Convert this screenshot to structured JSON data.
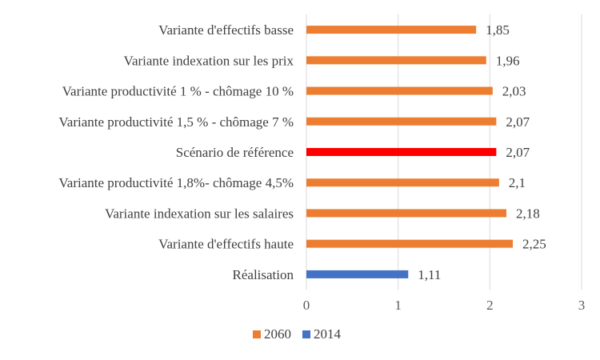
{
  "chart_data": {
    "type": "bar",
    "orientation": "horizontal",
    "categories": [
      "Variante d'effectifs basse",
      "Variante indexation sur les prix",
      "Variante productivité 1 % - chômage 10 %",
      "Variante productivité 1,5 % - chômage 7 %",
      "Scénario de référence",
      "Variante productivité 1,8%- chômage 4,5%",
      "Variante indexation sur les salaires",
      "Variante d'effectifs haute",
      "Réalisation"
    ],
    "values": [
      1.85,
      1.96,
      2.03,
      2.07,
      2.07,
      2.1,
      2.18,
      2.25,
      1.11
    ],
    "value_labels": [
      "1,85",
      "1,96",
      "2,03",
      "2,07",
      "2,07",
      "2,1",
      "2,18",
      "2,25",
      "1,11"
    ],
    "bar_series": [
      "2060",
      "2060",
      "2060",
      "2060",
      "2060",
      "2060",
      "2060",
      "2060",
      "2014"
    ],
    "highlight_category": "Scénario de référence",
    "highlight_color": "#FF0000",
    "series": [
      {
        "name": "2060",
        "color": "#ED7D31"
      },
      {
        "name": "2014",
        "color": "#4472C4"
      }
    ],
    "xlim": [
      0,
      3
    ],
    "xticks": [
      "0",
      "1",
      "2",
      "3"
    ],
    "grid": "vertical",
    "legend_position": "bottom",
    "title": "",
    "xlabel": "",
    "ylabel": ""
  }
}
